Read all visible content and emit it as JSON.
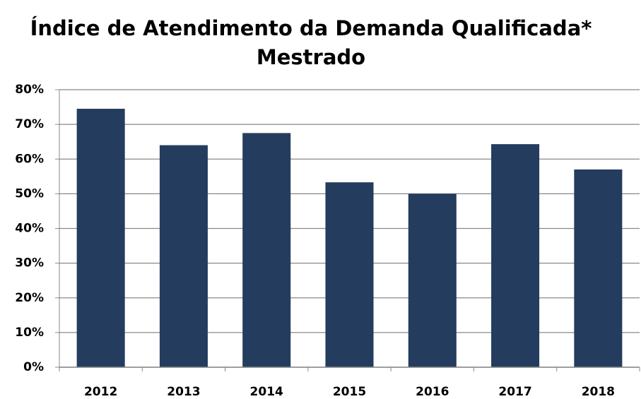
{
  "chart_data": {
    "type": "bar",
    "title": "Índice de Atendimento da Demanda Qualificada*",
    "subtitle": "Mestrado",
    "categories": [
      "2012",
      "2013",
      "2014",
      "2015",
      "2016",
      "2017",
      "2018"
    ],
    "values": [
      74.5,
      64,
      67.5,
      53.3,
      50,
      64.3,
      57
    ],
    "color": "#243c5e",
    "ylim": [
      0,
      80
    ],
    "yticks": [
      {
        "value": 0,
        "label": "0%"
      },
      {
        "value": 10,
        "label": "10%"
      },
      {
        "value": 20,
        "label": "20%"
      },
      {
        "value": 30,
        "label": "30%"
      },
      {
        "value": 40,
        "label": "40%"
      },
      {
        "value": 50,
        "label": "50%"
      },
      {
        "value": 60,
        "label": "60%"
      },
      {
        "value": 70,
        "label": "70%"
      },
      {
        "value": 80,
        "label": "80%"
      }
    ],
    "grid": true
  }
}
